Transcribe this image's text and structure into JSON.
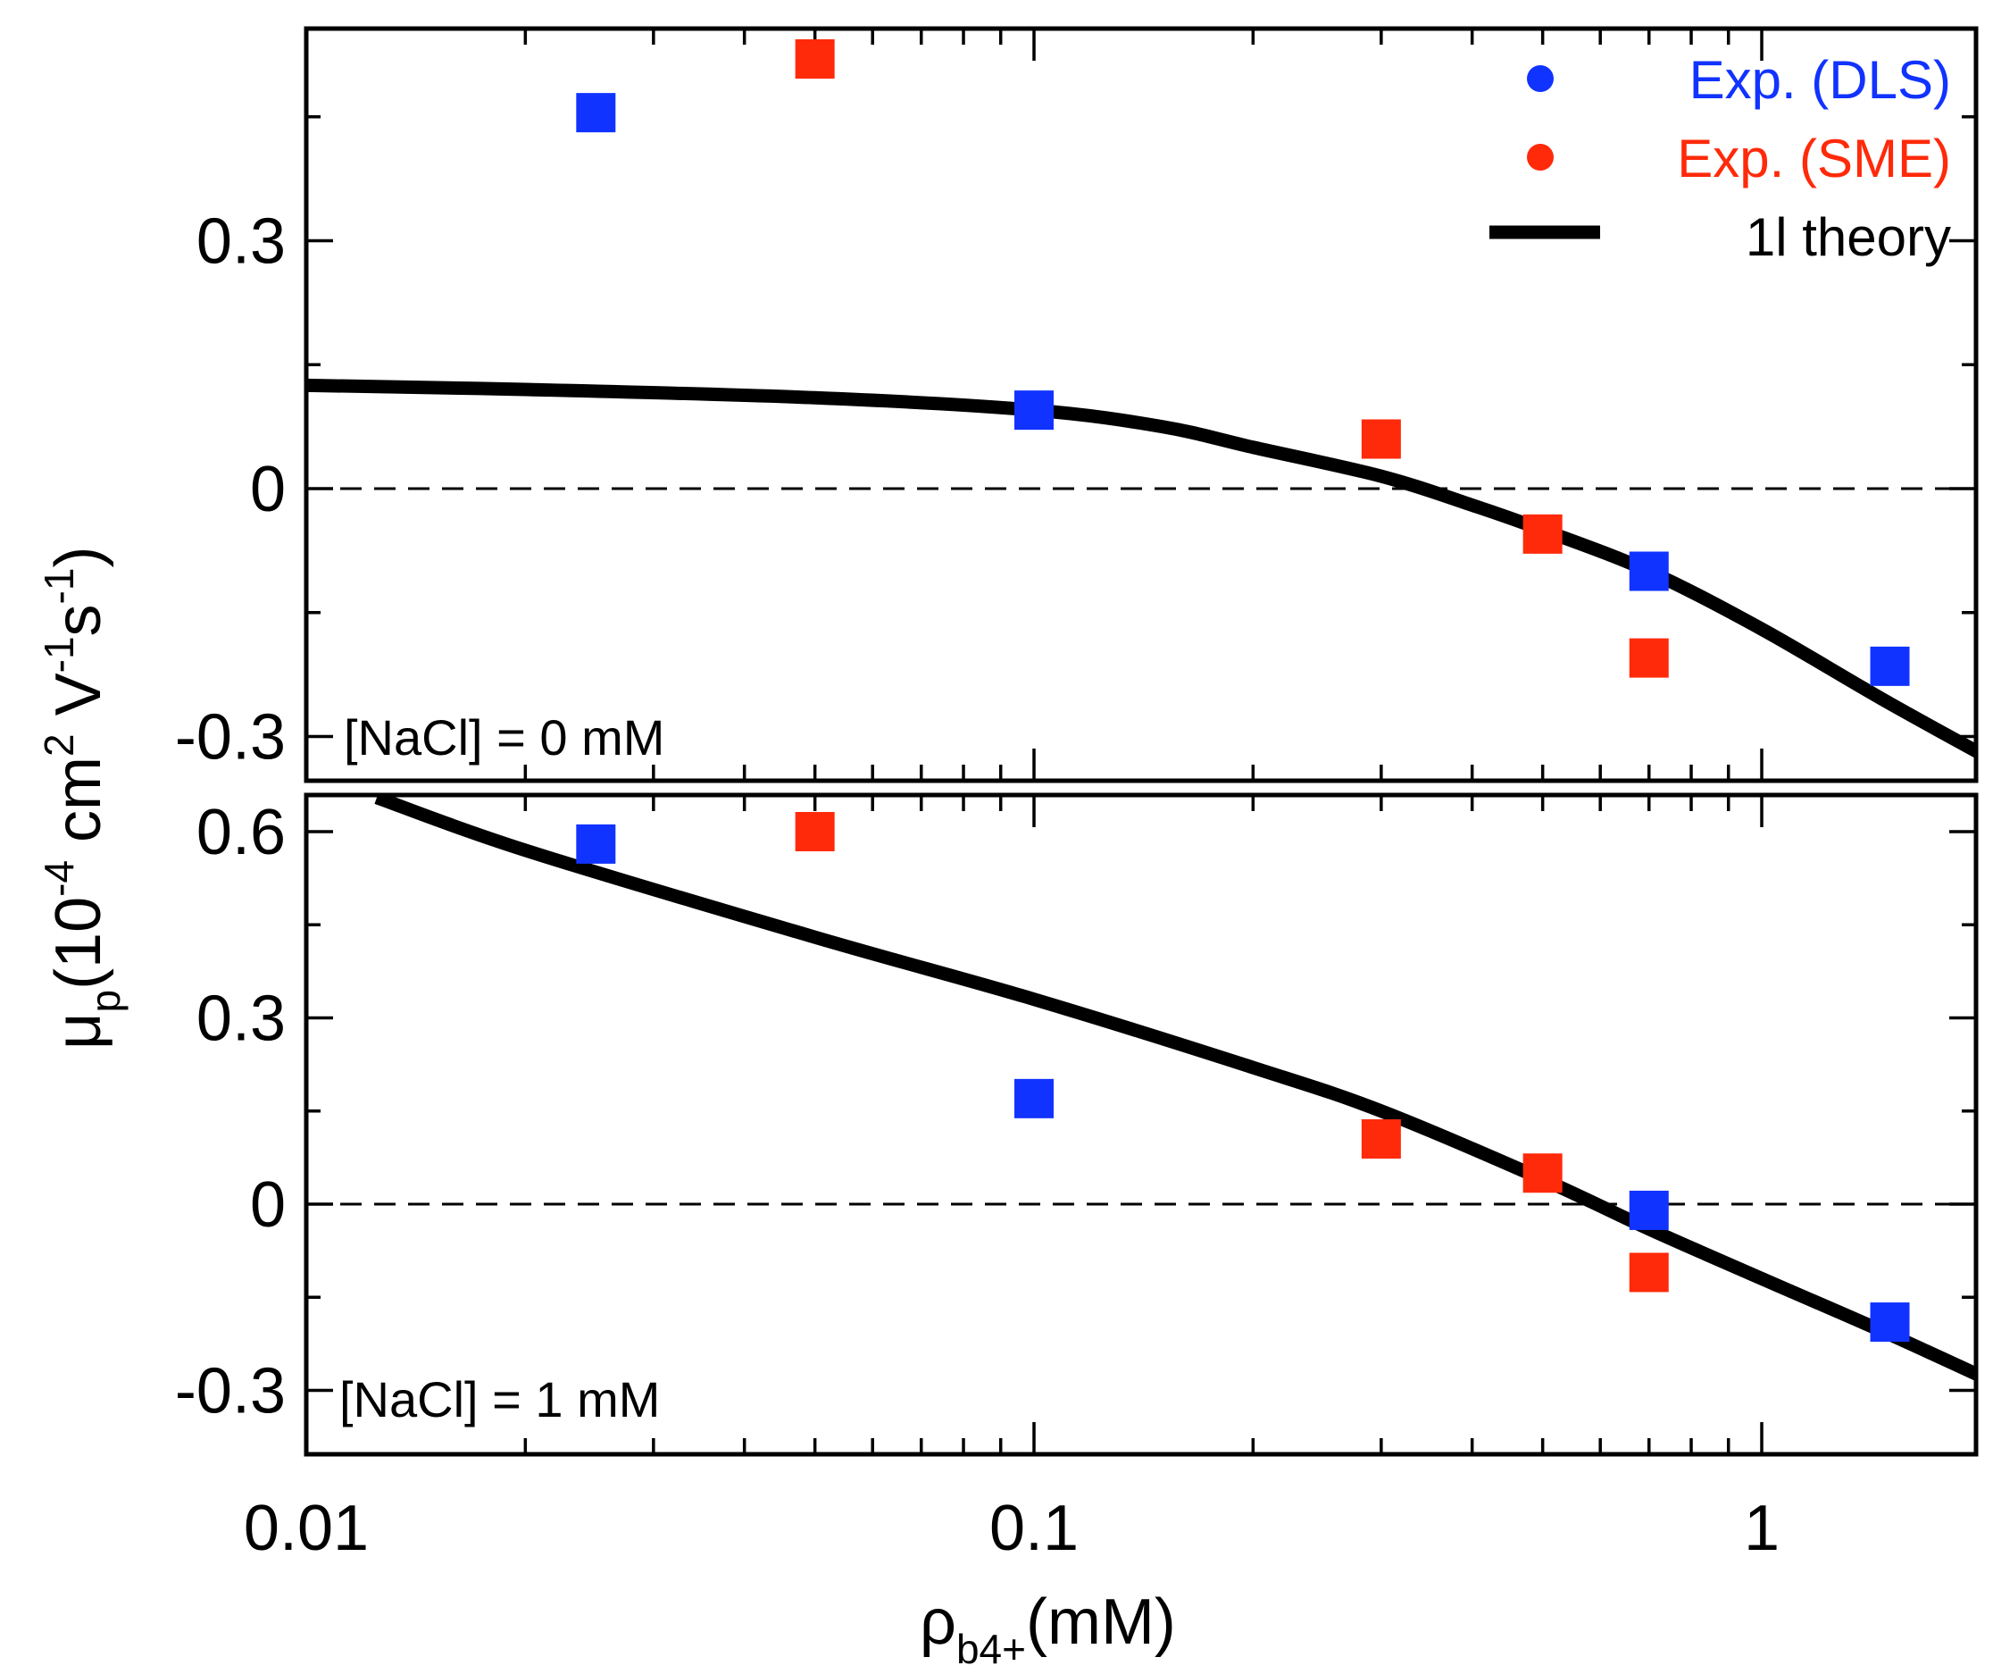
{
  "chart_data": [
    {
      "type": "scatter",
      "panel": "top",
      "annotation": "[NaCl] = 0 mM",
      "xscale": "log",
      "xlim": [
        0.01,
        2.3
      ],
      "ylim": [
        -0.35,
        0.56
      ],
      "yticks": [
        -0.3,
        0,
        0.3
      ],
      "ytick_labels": [
        "-0.3",
        "0",
        "0.3"
      ],
      "series": [
        {
          "name": "Exp. (DLS)",
          "color": "#1133ff",
          "marker": "square",
          "x": [
            0.025,
            0.1,
            0.7,
            1.5
          ],
          "y": [
            0.455,
            0.095,
            -0.1,
            -0.215
          ]
        },
        {
          "name": "Exp. (SME)",
          "color": "#ff2a0a",
          "marker": "square",
          "x": [
            0.05,
            0.3,
            0.5,
            0.7
          ],
          "y": [
            0.52,
            0.06,
            -0.055,
            -0.205
          ]
        },
        {
          "name": "1l theory",
          "color": "#000000",
          "marker": "line",
          "x": [
            0.01,
            0.02,
            0.05,
            0.1,
            0.15,
            0.2,
            0.3,
            0.4,
            0.5,
            0.7,
            1.0,
            1.5,
            2.3
          ],
          "y": [
            0.125,
            0.12,
            0.11,
            0.095,
            0.075,
            0.05,
            0.015,
            -0.02,
            -0.05,
            -0.1,
            -0.17,
            -0.26,
            -0.35
          ]
        }
      ]
    },
    {
      "type": "scatter",
      "panel": "bottom",
      "annotation": "[NaCl] = 1 mM",
      "xscale": "log",
      "xlim": [
        0.01,
        2.3
      ],
      "ylim": [
        -0.4,
        0.66
      ],
      "yticks": [
        -0.3,
        0,
        0.3,
        0.6
      ],
      "ytick_labels": [
        "-0.3",
        "0",
        "0.3",
        "0.6"
      ],
      "xticks": [
        0.01,
        0.1,
        1
      ],
      "xtick_labels": [
        "0.01",
        "0.1",
        "1"
      ],
      "series": [
        {
          "name": "Exp. (DLS)",
          "color": "#1133ff",
          "marker": "square",
          "x": [
            0.025,
            0.1,
            0.7,
            1.5
          ],
          "y": [
            0.58,
            0.17,
            -0.01,
            -0.19
          ]
        },
        {
          "name": "Exp. (SME)",
          "color": "#ff2a0a",
          "marker": "square",
          "x": [
            0.05,
            0.3,
            0.5,
            0.7
          ],
          "y": [
            0.6,
            0.105,
            0.05,
            -0.11
          ]
        },
        {
          "name": "1l theory",
          "color": "#000000",
          "marker": "line",
          "x": [
            0.0125,
            0.02,
            0.05,
            0.1,
            0.2,
            0.3,
            0.5,
            0.7,
            1.0,
            1.5,
            2.3
          ],
          "y": [
            0.655,
            0.57,
            0.43,
            0.33,
            0.22,
            0.15,
            0.04,
            -0.04,
            -0.12,
            -0.21,
            -0.31
          ]
        }
      ]
    }
  ],
  "xlabel": {
    "main": "ρ",
    "sub": "b4+",
    "rest": "(mM)"
  },
  "ylabel": {
    "main": "μ",
    "sub": "p",
    "rest": "(10",
    "exp1": "-4",
    "mid": " cm",
    "exp2": "2",
    "mid2": " V",
    "exp3": "-1",
    "mid3": "s",
    "exp4": "-1",
    "end": ")"
  },
  "legend": [
    {
      "label": "Exp. (DLS)",
      "color": "#1133ff",
      "symbol": "dot"
    },
    {
      "label": "Exp. (SME)",
      "color": "#ff2a0a",
      "symbol": "dot"
    },
    {
      "label": "1l theory",
      "color": "#000000",
      "symbol": "line"
    }
  ]
}
